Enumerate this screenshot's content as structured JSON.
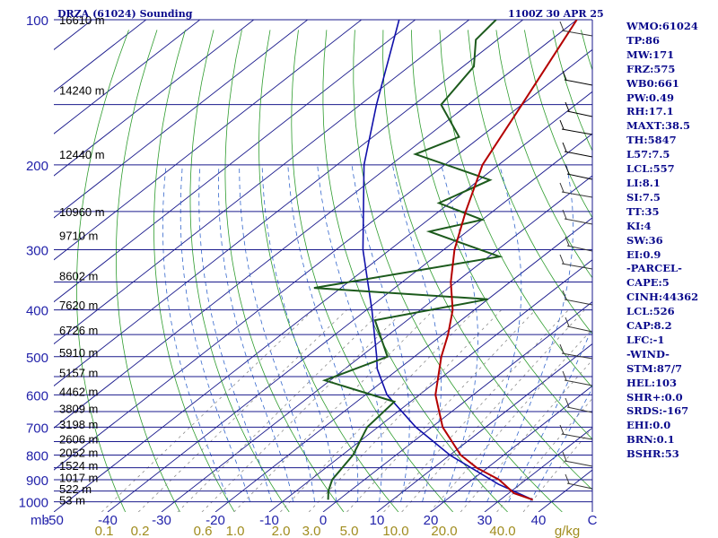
{
  "title": "DRZA (61024) Sounding",
  "valid_time": "1100Z 30 APR 25",
  "indices": [
    "WMO:61024",
    "TP:86",
    "MW:171",
    "FRZ:575",
    "WB0:661",
    "PW:0.49",
    "RH:17.1",
    "MAXT:38.5",
    "TH:5847",
    "L57:7.5",
    "LCL:557",
    "LI:8.1",
    "SI:7.5",
    "TT:35",
    "KI:4",
    "SW:36",
    "EI:0.9",
    "-PARCEL-",
    "CAPE:5",
    "CINH:44362",
    "LCL:526",
    "CAP:8.2",
    "LFC:-1",
    "-WIND-",
    "STM:87/7",
    "HEL:103",
    "SHR+:0.0",
    "SRDS:-167",
    "EHI:0.0",
    "BRN:0.1",
    "BSHR:53"
  ],
  "colors": {
    "isobar": "#1a1a8c",
    "isotherm": "#1a1a8c",
    "dry_adiabat": "#2e9c2e",
    "moist_adiabat": "#3366cc",
    "mixing_ratio": "#8c8c8c",
    "temperature": "#b40000",
    "dewpoint": "#1c5a1c",
    "parcel": "#1010aa",
    "axis_text": "#2222aa",
    "mixratio_text": "#a08c1e"
  },
  "chart_data": {
    "type": "skew-t",
    "x_unit": "mb",
    "x_ticks": [
      -50,
      -40,
      -30,
      -20,
      -10,
      0,
      10,
      20,
      30,
      40,
      50
    ],
    "x_tick_labels": [
      "-50",
      "-40",
      "-30",
      "-20",
      "-10",
      "0",
      "10",
      "20",
      "30",
      "40",
      "C"
    ],
    "pressure_labels": [
      100,
      200,
      300,
      400,
      500,
      600,
      700,
      800,
      900,
      1000
    ],
    "height_labels": [
      {
        "p": 100,
        "label": "16610 m"
      },
      {
        "p": 140,
        "label": "14240 m"
      },
      {
        "p": 190,
        "label": "12440 m"
      },
      {
        "p": 250,
        "label": "10960 m"
      },
      {
        "p": 280,
        "label": "9710 m"
      },
      {
        "p": 340,
        "label": "8602 m"
      },
      {
        "p": 390,
        "label": "7620 m"
      },
      {
        "p": 440,
        "label": "6726 m"
      },
      {
        "p": 490,
        "label": "5910 m"
      },
      {
        "p": 540,
        "label": "5157 m"
      },
      {
        "p": 590,
        "label": "4462 m"
      },
      {
        "p": 640,
        "label": "3809 m"
      },
      {
        "p": 690,
        "label": "3198 m"
      },
      {
        "p": 740,
        "label": "2606 m"
      },
      {
        "p": 790,
        "label": "2052 m"
      },
      {
        "p": 840,
        "label": "1524 m"
      },
      {
        "p": 890,
        "label": "1017 m"
      },
      {
        "p": 940,
        "label": "522 m"
      },
      {
        "p": 990,
        "label": "53 m"
      }
    ],
    "mixing_ratio_labels": [
      "0.1",
      "0.2",
      "0.6",
      "1.0",
      "2.0",
      "3.0",
      "5.0",
      "10.0",
      "20.0",
      "40.0",
      "g/kg"
    ],
    "temperature": [
      {
        "p": 990,
        "t": 36
      },
      {
        "p": 960,
        "t": 31
      },
      {
        "p": 900,
        "t": 25
      },
      {
        "p": 850,
        "t": 18
      },
      {
        "p": 800,
        "t": 12
      },
      {
        "p": 700,
        "t": 2
      },
      {
        "p": 600,
        "t": -7
      },
      {
        "p": 500,
        "t": -15
      },
      {
        "p": 450,
        "t": -19
      },
      {
        "p": 400,
        "t": -24
      },
      {
        "p": 350,
        "t": -31
      },
      {
        "p": 300,
        "t": -38
      },
      {
        "p": 250,
        "t": -45
      },
      {
        "p": 200,
        "t": -53
      },
      {
        "p": 150,
        "t": -60
      },
      {
        "p": 100,
        "t": -70
      }
    ],
    "dewpoint": [
      {
        "p": 990,
        "t": -2
      },
      {
        "p": 950,
        "t": -4
      },
      {
        "p": 900,
        "t": -6
      },
      {
        "p": 800,
        "t": -8
      },
      {
        "p": 700,
        "t": -12
      },
      {
        "p": 620,
        "t": -13
      },
      {
        "p": 560,
        "t": -31
      },
      {
        "p": 500,
        "t": -25
      },
      {
        "p": 420,
        "t": -36
      },
      {
        "p": 380,
        "t": -20
      },
      {
        "p": 360,
        "t": -55
      },
      {
        "p": 310,
        "t": -28
      },
      {
        "p": 275,
        "t": -47
      },
      {
        "p": 260,
        "t": -40
      },
      {
        "p": 240,
        "t": -52
      },
      {
        "p": 215,
        "t": -48
      },
      {
        "p": 190,
        "t": -68
      },
      {
        "p": 175,
        "t": -64
      },
      {
        "p": 150,
        "t": -75
      },
      {
        "p": 125,
        "t": -78
      },
      {
        "p": 110,
        "t": -84
      },
      {
        "p": 100,
        "t": -85
      }
    ],
    "parcel": [
      {
        "p": 990,
        "t": 36
      },
      {
        "p": 920,
        "t": 26
      },
      {
        "p": 800,
        "t": 10
      },
      {
        "p": 700,
        "t": -3
      },
      {
        "p": 600,
        "t": -16
      },
      {
        "p": 530,
        "t": -24
      },
      {
        "p": 500,
        "t": -27
      },
      {
        "p": 400,
        "t": -39
      },
      {
        "p": 300,
        "t": -55
      },
      {
        "p": 200,
        "t": -75
      },
      {
        "p": 150,
        "t": -87
      },
      {
        "p": 100,
        "t": -103
      }
    ]
  }
}
